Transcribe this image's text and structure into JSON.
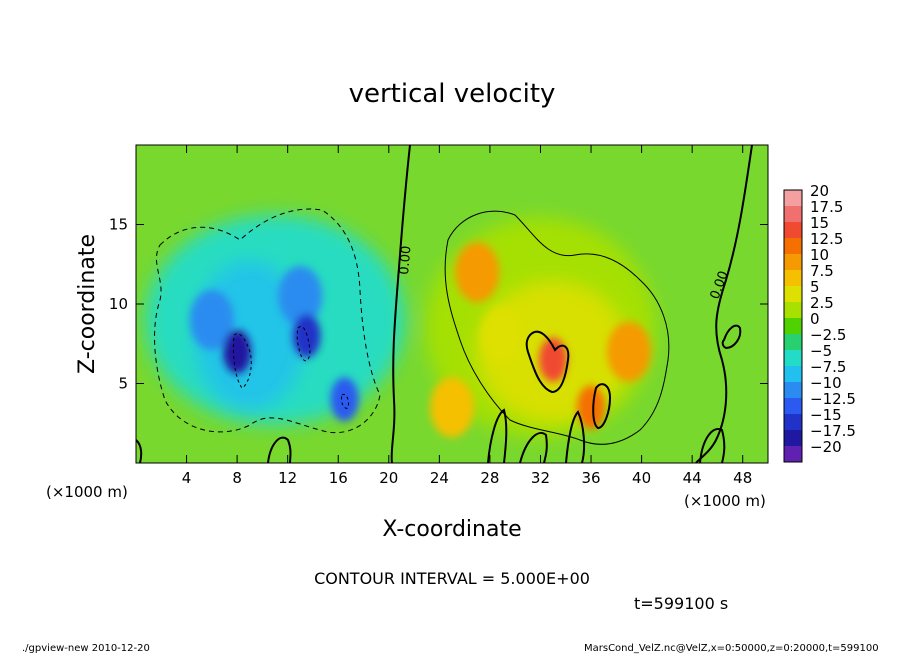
{
  "chart_data": {
    "type": "heatmap",
    "title": "vertical velocity",
    "xlabel": "X-coordinate",
    "ylabel": "Z-coordinate",
    "xlim": [
      0,
      50
    ],
    "ylim": [
      0,
      20
    ],
    "x_unit_left": "(×1000 m)",
    "x_unit_right": "(×1000 m)",
    "x_ticks": [
      4,
      8,
      12,
      16,
      20,
      24,
      28,
      32,
      36,
      40,
      44,
      48
    ],
    "y_ticks": [
      5,
      10,
      15
    ],
    "contour_interval_text": "CONTOUR INTERVAL = 5.000E+00",
    "time_text": "t=599100 s",
    "contour_labels": [
      "0.00",
      "0.00"
    ],
    "colorbar": {
      "labels": [
        "20",
        "17.5",
        "15",
        "12.5",
        "10",
        "7.5",
        "5",
        "2.5",
        "0",
        "−2.5",
        "−5",
        "−7.5",
        "−10",
        "−12.5",
        "−15",
        "−17.5",
        "−20"
      ],
      "colors": [
        "#f5a0a0",
        "#f07070",
        "#f04a30",
        "#f57000",
        "#f59a00",
        "#f5c000",
        "#dde000",
        "#a8e000",
        "#50d200",
        "#28d070",
        "#22dcc8",
        "#22c0ee",
        "#2a8cf0",
        "#2a5af0",
        "#2032c8",
        "#2018a0",
        "#6020b0"
      ]
    },
    "features": [
      {
        "kind": "downdraft",
        "x": 6,
        "z": 9,
        "value": -10
      },
      {
        "kind": "downdraft",
        "x": 8,
        "z": 7,
        "value": -17.5
      },
      {
        "kind": "downdraft",
        "x": 13,
        "z": 10.5,
        "value": -10
      },
      {
        "kind": "downdraft",
        "x": 13.5,
        "z": 8,
        "value": -15
      },
      {
        "kind": "downdraft",
        "x": 16.5,
        "z": 4,
        "value": -12.5
      },
      {
        "kind": "updraft",
        "x": 27,
        "z": 12,
        "value": 10
      },
      {
        "kind": "updraft",
        "x": 33,
        "z": 6.5,
        "value": 15
      },
      {
        "kind": "updraft",
        "x": 36,
        "z": 3.5,
        "value": 12.5
      },
      {
        "kind": "updraft",
        "x": 39,
        "z": 7,
        "value": 10
      },
      {
        "kind": "updraft",
        "x": 25,
        "z": 3.5,
        "value": 7.5
      },
      {
        "kind": "updraft",
        "x": 29,
        "z": 8,
        "value": 5
      }
    ],
    "grid": false
  },
  "footer": {
    "left": "./gpview-new   2010-12-20",
    "right": "MarsCond_VelZ.nc@VelZ,x=0:50000,z=0:20000,t=599100"
  }
}
